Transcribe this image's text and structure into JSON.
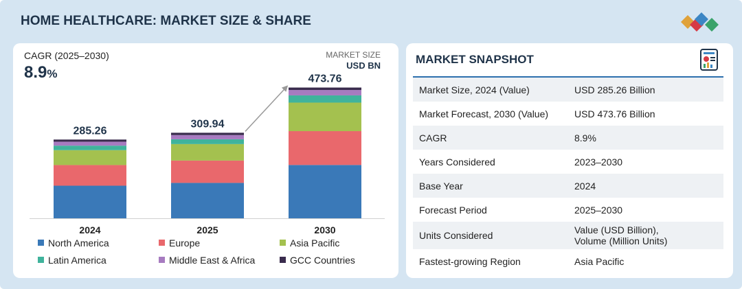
{
  "header": {
    "title": "HOME HEALTHCARE: MARKET SIZE & SHARE"
  },
  "left_panel": {
    "cagr_label": "CAGR (2025–2030)",
    "cagr_number": "8.9",
    "cagr_unit": "%",
    "market_size_label": "MARKET SIZE",
    "market_size_unit": "USD BN"
  },
  "chart_data": {
    "type": "bar",
    "stacked": true,
    "categories": [
      "2024",
      "2025",
      "2030"
    ],
    "totals": [
      "285.26",
      "309.94",
      "473.76"
    ],
    "series": [
      {
        "name": "North America",
        "color": "#3a79b8",
        "values": [
          118.1,
          128.3,
          193.2
        ]
      },
      {
        "name": "Europe",
        "color": "#e9686c",
        "values": [
          74.8,
          80.9,
          122.6
        ]
      },
      {
        "name": "Asia Pacific",
        "color": "#a4c14f",
        "values": [
          53.9,
          59.7,
          103.3
        ]
      },
      {
        "name": "Latin America",
        "color": "#40b39c",
        "values": [
          16.4,
          17.4,
          26.2
        ]
      },
      {
        "name": "Middle East & Africa",
        "color": "#a77bc0",
        "values": [
          14.3,
          15.3,
          19.5
        ]
      },
      {
        "name": "GCC Countries",
        "color": "#3a2c4d",
        "values": [
          7.8,
          8.3,
          8.9
        ]
      }
    ],
    "ylim": [
      0,
      480
    ],
    "annotation": "arrow from 2025 to 2030"
  },
  "snapshot": {
    "title": "MARKET SNAPSHOT",
    "rows": [
      {
        "key": "Market Size, 2024 (Value)",
        "value": "USD 285.26 Billion"
      },
      {
        "key": "Market Forecast, 2030 (Value)",
        "value": "USD  473.76 Billion"
      },
      {
        "key": "CAGR",
        "value": "8.9%"
      },
      {
        "key": "Years Considered",
        "value": "2023–2030"
      },
      {
        "key": "Base Year",
        "value": "2024"
      },
      {
        "key": "Forecast Period",
        "value": "2025–2030"
      },
      {
        "key": "Units Considered",
        "value": "Value (USD Billion),\nVolume (Million Units)"
      },
      {
        "key": "Fastest-growing Region",
        "value": "Asia Pacific"
      }
    ]
  },
  "logo": {
    "colors": [
      "#e0a23a",
      "#d63a45",
      "#3c86c4",
      "#3aa36a"
    ]
  },
  "snapshot_icon": {
    "name": "report-icon"
  }
}
